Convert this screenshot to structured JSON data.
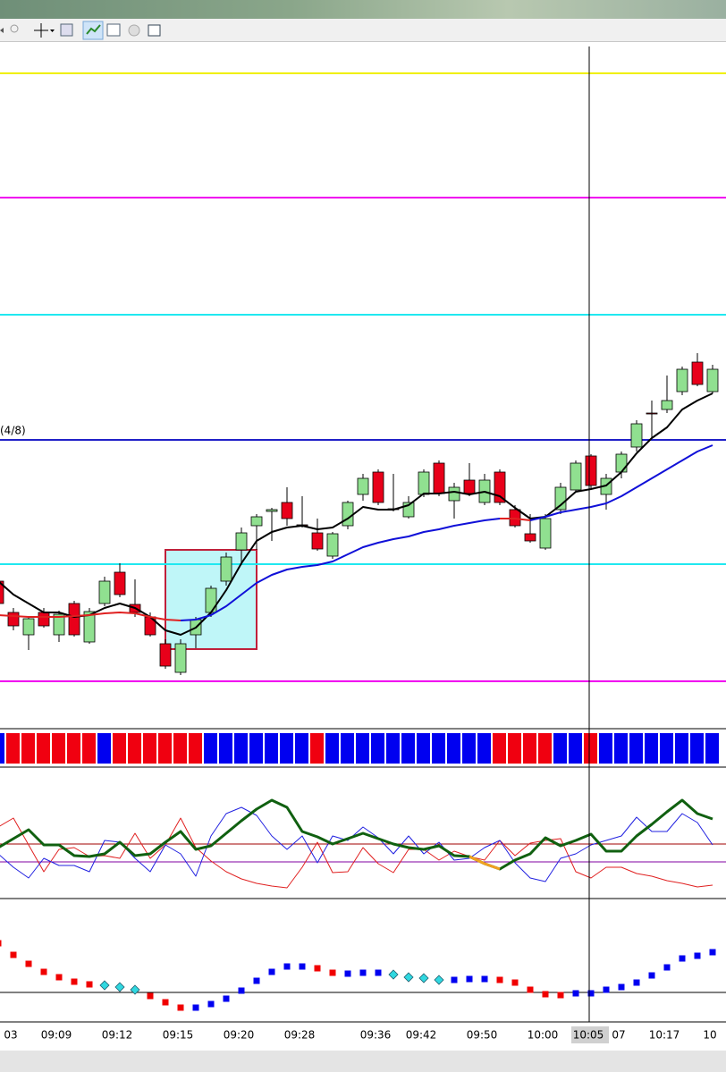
{
  "chart_data": [
    {
      "type": "candlestick",
      "ylim": [
        185,
        953
      ],
      "levels": [
        {
          "value": 918,
          "color": "#f0f000"
        },
        {
          "value": 779,
          "color": "#f000f0"
        },
        {
          "value": 648,
          "color": "#20e8f0"
        },
        {
          "value": 508,
          "color": "#2020c8",
          "label": "(4/8)"
        },
        {
          "value": 369,
          "color": "#20e8f0"
        },
        {
          "value": 238,
          "color": "#f000f0"
        }
      ],
      "up_color": "#90e090",
      "down_color": "#e8001a",
      "open": [
        350,
        315,
        290,
        315,
        290,
        325,
        282,
        325,
        360,
        324,
        310,
        280,
        248,
        290,
        315,
        350,
        385,
        412,
        428,
        438,
        413,
        404,
        378,
        412,
        447,
        472,
        431,
        422,
        447,
        482,
        440,
        463,
        438,
        472,
        430,
        403,
        387,
        430,
        452,
        490,
        447,
        472,
        500,
        538,
        542,
        562,
        595,
        562
      ],
      "high": [
        352,
        320,
        310,
        320,
        317,
        328,
        320,
        355,
        370,
        352,
        315,
        285,
        285,
        310,
        345,
        382,
        410,
        425,
        432,
        455,
        445,
        420,
        405,
        440,
        470,
        475,
        470,
        445,
        475,
        485,
        460,
        482,
        470,
        475,
        435,
        425,
        425,
        460,
        485,
        492,
        470,
        495,
        530,
        552,
        580,
        590,
        605,
        592
      ],
      "low": [
        322,
        295,
        273,
        298,
        282,
        288,
        280,
        322,
        332,
        310,
        288,
        252,
        245,
        275,
        310,
        345,
        368,
        385,
        395,
        412,
        410,
        384,
        375,
        408,
        440,
        435,
        428,
        420,
        444,
        445,
        420,
        445,
        435,
        435,
        410,
        393,
        385,
        425,
        450,
        454,
        430,
        465,
        495,
        510,
        538,
        558,
        568,
        560
      ],
      "close": [
        325,
        300,
        308,
        300,
        313,
        290,
        316,
        350,
        335,
        315,
        290,
        255,
        280,
        307,
        342,
        377,
        404,
        422,
        430,
        420,
        412,
        386,
        403,
        438,
        465,
        438,
        430,
        438,
        472,
        448,
        455,
        448,
        463,
        438,
        412,
        395,
        420,
        455,
        482,
        457,
        465,
        492,
        526,
        537,
        552,
        587,
        570,
        587
      ],
      "series": [
        {
          "color": "#000000",
          "width": 2,
          "values": [
            350,
            335,
            325,
            315,
            315,
            310,
            312,
            320,
            325,
            320,
            310,
            295,
            290,
            298,
            315,
            340,
            370,
            395,
            405,
            410,
            412,
            408,
            410,
            420,
            433,
            430,
            430,
            435,
            448,
            448,
            450,
            447,
            450,
            445,
            432,
            420,
            422,
            435,
            450,
            453,
            457,
            472,
            493,
            510,
            522,
            542,
            552,
            560
          ]
        },
        {
          "color": "#1010d8",
          "width": 2,
          "values": [
            null,
            null,
            null,
            null,
            null,
            null,
            null,
            null,
            null,
            null,
            null,
            null,
            306,
            307,
            312,
            322,
            335,
            348,
            357,
            363,
            366,
            368,
            372,
            380,
            388,
            393,
            397,
            400,
            405,
            408,
            412,
            415,
            418,
            420,
            null,
            418,
            422,
            427,
            430,
            433,
            437,
            445,
            455,
            465,
            475,
            485,
            495,
            502
          ]
        },
        {
          "color": "#e02020",
          "width": 2,
          "values": [
            312,
            311,
            310,
            310,
            310,
            311,
            312,
            314,
            315,
            314,
            310,
            307,
            306,
            null,
            null,
            null,
            null,
            null,
            null,
            null,
            null,
            null,
            null,
            null,
            null,
            null,
            null,
            null,
            null,
            null,
            null,
            null,
            null,
            420,
            420,
            418,
            null,
            null,
            null,
            null,
            null,
            null,
            null,
            null,
            null,
            null,
            null,
            null
          ]
        }
      ]
    },
    {
      "type": "strip",
      "colors": [
        "#0000f0",
        "#f00010",
        "#f00010",
        "#f00010",
        "#f00010",
        "#f00010",
        "#f00010",
        "#0000f0",
        "#f00010",
        "#f00010",
        "#f00010",
        "#f00010",
        "#f00010",
        "#f00010",
        "#0000f0",
        "#0000f0",
        "#0000f0",
        "#0000f0",
        "#0000f0",
        "#0000f0",
        "#0000f0",
        "#f00010",
        "#0000f0",
        "#0000f0",
        "#0000f0",
        "#0000f0",
        "#0000f0",
        "#0000f0",
        "#0000f0",
        "#0000f0",
        "#0000f0",
        "#0000f0",
        "#0000f0",
        "#f00010",
        "#f00010",
        "#f00010",
        "#f00010",
        "#0000f0",
        "#0000f0",
        "#f00010",
        "#0000f0",
        "#0000f0",
        "#0000f0",
        "#0000f0",
        "#0000f0",
        "#0000f0",
        "#0000f0",
        "#0000f0"
      ]
    },
    {
      "type": "line",
      "ylim": [
        0,
        145
      ],
      "hlines": [
        {
          "value": 61,
          "color": "#a00000"
        },
        {
          "value": 41,
          "color": "#8000a0"
        }
      ],
      "series": [
        {
          "color": "#e02020",
          "width": 1,
          "values": [
            80,
            90,
            60,
            30,
            55,
            57,
            47,
            48,
            45,
            73,
            45,
            60,
            90,
            57,
            42,
            30,
            22,
            17,
            14,
            12,
            35,
            63,
            29,
            30,
            57,
            39,
            29,
            55,
            55,
            43,
            53,
            47,
            43,
            65,
            48,
            62,
            65,
            67,
            30,
            23,
            35,
            35,
            28,
            25,
            20,
            17,
            13,
            15
          ]
        },
        {
          "color": "#2020e0",
          "width": 1,
          "values": [
            50,
            35,
            23,
            45,
            37,
            37,
            30,
            65,
            63,
            45,
            30,
            60,
            50,
            25,
            70,
            95,
            102,
            93,
            70,
            55,
            70,
            40,
            70,
            65,
            80,
            68,
            50,
            70,
            50,
            63,
            43,
            45,
            57,
            65,
            40,
            23,
            19,
            45,
            50,
            60,
            65,
            70,
            91,
            75,
            75,
            95,
            85,
            60
          ]
        },
        {
          "color": "#106010",
          "width": 3,
          "values": [
            57,
            67,
            77,
            60,
            60,
            48,
            47,
            50,
            63,
            48,
            50,
            63,
            75,
            55,
            59,
            73,
            87,
            100,
            110,
            102,
            75,
            69,
            61,
            67,
            73,
            67,
            61,
            57,
            55,
            59,
            48,
            47,
            39,
            33,
            43,
            50,
            68,
            59,
            65,
            72,
            53,
            53,
            70,
            83,
            97,
            110,
            95,
            89
          ]
        },
        {
          "color": "#f0a020",
          "width": 3,
          "values": [
            null,
            null,
            null,
            null,
            null,
            null,
            null,
            null,
            null,
            null,
            null,
            null,
            null,
            null,
            null,
            null,
            null,
            null,
            null,
            null,
            null,
            null,
            null,
            null,
            null,
            null,
            null,
            null,
            null,
            null,
            null,
            47,
            39,
            33,
            null,
            null,
            null,
            null,
            null,
            null,
            null,
            null,
            null,
            null,
            null,
            null,
            null,
            null
          ]
        }
      ]
    },
    {
      "type": "scatter",
      "ylim": [
        0,
        138
      ],
      "hlines": [
        {
          "value": 33,
          "color": "#000000"
        }
      ],
      "categories": [
        null,
        "03",
        null,
        null,
        "09:09",
        null,
        null,
        null,
        "09:12",
        null,
        null,
        null,
        "09:15",
        null,
        null,
        null,
        "09:20",
        null,
        null,
        null,
        "09:28",
        null,
        null,
        null,
        null,
        "09:36",
        null,
        null,
        "09:42",
        null,
        null,
        null,
        "09:50",
        null,
        null,
        null,
        "10:00",
        null,
        null,
        "10:05",
        null,
        "07",
        null,
        null,
        "10:17",
        null,
        null,
        "10"
      ],
      "crosshair": 39,
      "values": [
        88,
        75,
        65,
        56,
        50,
        45,
        42,
        41,
        39,
        36,
        29,
        22,
        16,
        16,
        20,
        26,
        35,
        46,
        56,
        62,
        62,
        60,
        55,
        54,
        55,
        55,
        53,
        50,
        49,
        47,
        47,
        48,
        48,
        47,
        44,
        36,
        31,
        30,
        32,
        32,
        36,
        39,
        44,
        52,
        61,
        71,
        74,
        78
      ],
      "colors": [
        "#f00000",
        "#f00000",
        "#f00000",
        "#f00000",
        "#f00000",
        "#f00000",
        "#f00000",
        "#30d8e0",
        "#30d8e0",
        "#30d8e0",
        "#f00000",
        "#f00000",
        "#f00000",
        "#0000f0",
        "#0000f0",
        "#0000f0",
        "#0000f0",
        "#0000f0",
        "#0000f0",
        "#0000f0",
        "#0000f0",
        "#f00000",
        "#f00000",
        "#0000f0",
        "#0000f0",
        "#0000f0",
        "#30d8e0",
        "#30d8e0",
        "#30d8e0",
        "#30d8e0",
        "#0000f0",
        "#0000f0",
        "#0000f0",
        "#f00000",
        "#f00000",
        "#f00000",
        "#f00000",
        "#f00000",
        "#0000f0",
        "#0000f0",
        "#0000f0",
        "#0000f0",
        "#0000f0",
        "#0000f0",
        "#0000f0",
        "#0000f0",
        "#0000f0",
        "#0000f0"
      ],
      "markers": [
        "square",
        "square",
        "square",
        "square",
        "square",
        "square",
        "square",
        "diamond",
        "diamond",
        "diamond",
        "square",
        "square",
        "square",
        "square",
        "square",
        "square",
        "square",
        "square",
        "square",
        "square",
        "square",
        "square",
        "square",
        "square",
        "square",
        "square",
        "diamond",
        "diamond",
        "diamond",
        "diamond",
        "square",
        "square",
        "square",
        "square",
        "square",
        "square",
        "square",
        "square",
        "square",
        "square",
        "square",
        "square",
        "square",
        "square",
        "square",
        "square",
        "square",
        "square"
      ]
    }
  ]
}
